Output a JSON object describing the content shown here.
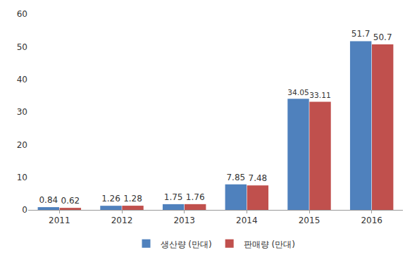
{
  "chart_data": {
    "type": "bar",
    "categories": [
      "2011",
      "2012",
      "2013",
      "2014",
      "2015",
      "2016"
    ],
    "series": [
      {
        "name": "생산량 (만대)",
        "color": "#4f81bd",
        "values": [
          0.84,
          1.26,
          1.75,
          7.85,
          34.05,
          51.7
        ]
      },
      {
        "name": "판매량 (만대)",
        "color": "#c0504d",
        "values": [
          0.62,
          1.28,
          1.76,
          7.48,
          33.11,
          50.7
        ]
      }
    ],
    "ylim": [
      0,
      60
    ],
    "yticks": [
      0,
      10,
      20,
      30,
      40,
      50,
      60
    ],
    "grid": false,
    "legend": "bottom",
    "data_labels": true
  }
}
